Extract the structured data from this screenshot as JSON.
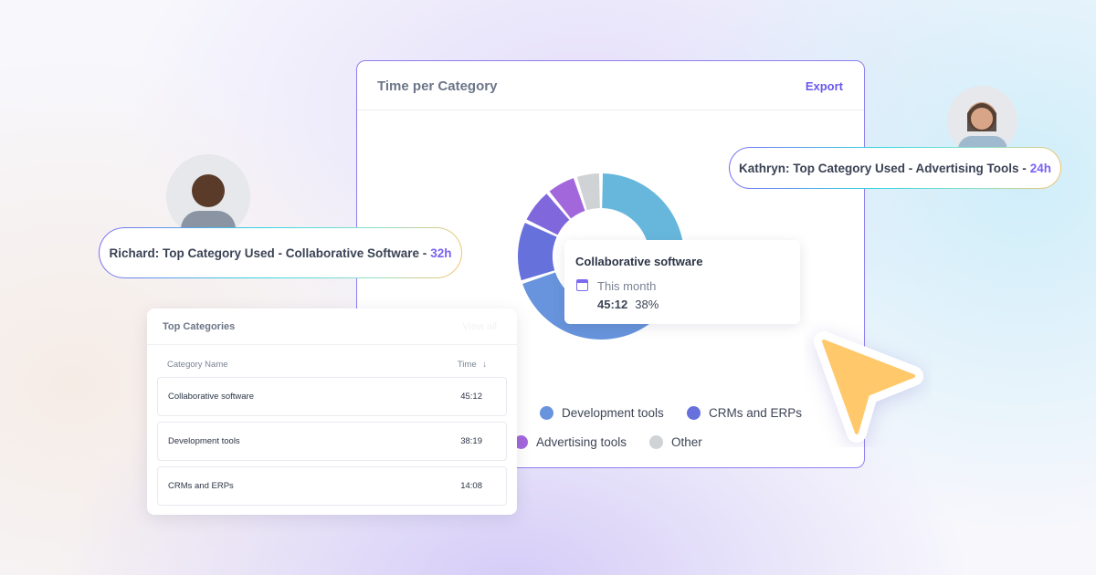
{
  "card": {
    "title": "Time per Category",
    "export_label": "Export"
  },
  "chart_data": {
    "type": "pie",
    "unit": "%",
    "segments": [
      {
        "name": "Collaborative software",
        "value": 38,
        "color": "#67b7dc"
      },
      {
        "name": "Development tools",
        "value": 32,
        "color": "#6794dc"
      },
      {
        "name": "CRMs and ERPs",
        "value": 12,
        "color": "#6771dc"
      },
      {
        "name": "",
        "value": 7,
        "color": "#8067dc"
      },
      {
        "name": "Advertising tools",
        "value": 6,
        "color": "#a367dc"
      },
      {
        "name": "Other",
        "value": 5,
        "color": "#cfd3d6"
      }
    ],
    "legend": [
      {
        "label": "Development tools",
        "color": "#6794dc"
      },
      {
        "label": "CRMs and ERPs",
        "color": "#6771dc"
      },
      {
        "label": "Advertising tools",
        "color": "#a367dc"
      },
      {
        "label": "Other",
        "color": "#cfd3d6"
      }
    ]
  },
  "tooltip": {
    "title": "Collaborative software",
    "period": "This month",
    "time": "45:12",
    "percent": "38%",
    "icon": "calendar-icon"
  },
  "table": {
    "title": "Top Categories",
    "view_all": "View all",
    "col_name": "Category Name",
    "col_time": "Time",
    "sort_icon": "arrow-down-icon",
    "rows": [
      {
        "name": "Collaborative software",
        "time": "45:12"
      },
      {
        "name": "Development tools",
        "time": "38:19"
      },
      {
        "name": "CRMs and ERPs",
        "time": "14:08"
      }
    ]
  },
  "richard": {
    "text": "Richard: Top Category Used - Collaborative Software -",
    "hours": "32h"
  },
  "kathryn": {
    "text": "Kathryn: Top Category Used - Advertising Tools -",
    "hours": "24h"
  },
  "colors": {
    "accent": "#6a58ee",
    "cursor": "#ffc96b"
  }
}
